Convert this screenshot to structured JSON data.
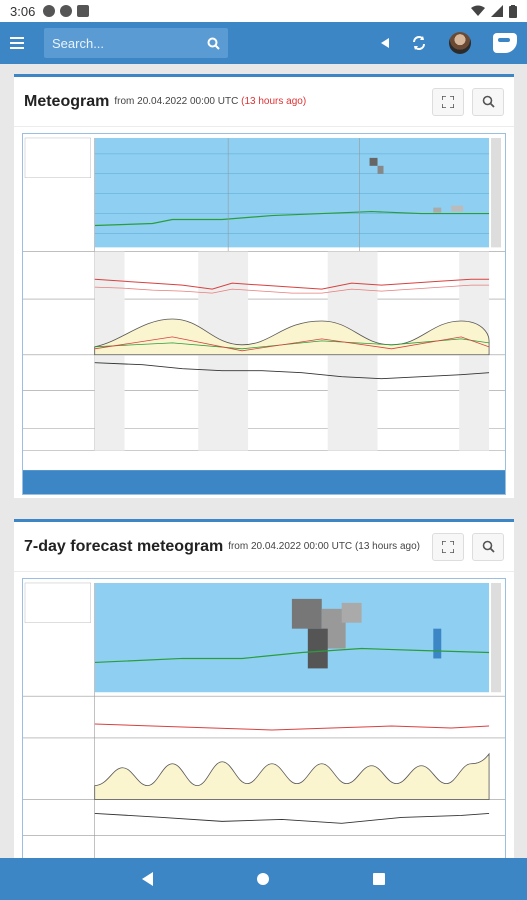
{
  "status": {
    "time": "3:06"
  },
  "search": {
    "placeholder": "Search..."
  },
  "cards": [
    {
      "title": "Meteogram",
      "from": "from 20.04.2022 00:00 UTC",
      "ago": "(13 hours ago)"
    },
    {
      "title": "7-day forecast meteogram",
      "from": "from 20.04.2022 00:00 UTC",
      "ago": "(13 hours ago)"
    }
  ],
  "colors": {
    "accent": "#3d86c6",
    "sky": "#8fd0f2",
    "ago": "#dd3333"
  }
}
